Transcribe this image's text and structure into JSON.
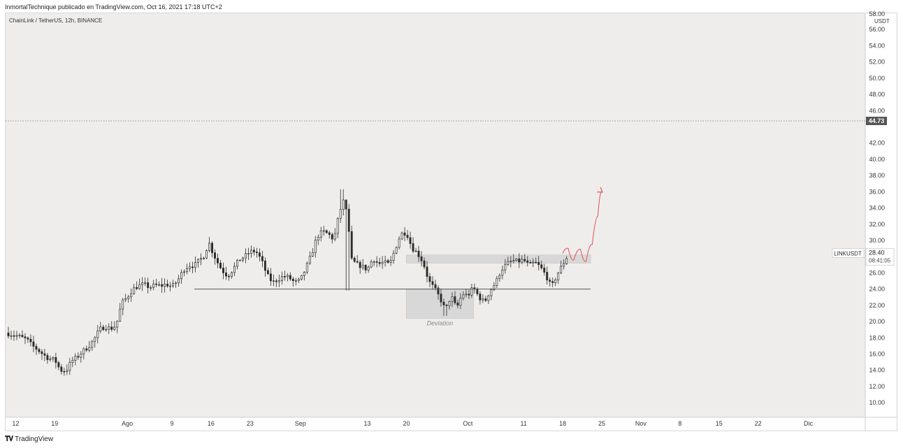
{
  "header": {
    "publisher_line": "InmortalTechnique publicado en TradingView.com, Oct 16, 2021 17:18 UTC+2"
  },
  "footer": {
    "brand": "TradingView",
    "logo_icon": "tradingview-logo-icon"
  },
  "colors": {
    "plot_bg": "#eeedec",
    "axis_bg": "#ffffff",
    "candle": "#2a2a2a",
    "projection": "#e06060",
    "zone": "#d9d8d8",
    "support_line": "#555555"
  },
  "chart_data": {
    "type": "candlestick",
    "title": "ChainLink / TetherUS, 12h, BINANCE",
    "price_scale_unit": "USDT",
    "ylim": [
      8.2,
      58.0
    ],
    "y_ticks": [
      "56.00",
      "54.00",
      "52.00",
      "50.00",
      "48.00",
      "46.00",
      "42.00",
      "40.00",
      "38.00",
      "36.00",
      "34.00",
      "32.00",
      "30.00",
      "28.00",
      "26.00",
      "24.00",
      "22.00",
      "20.00",
      "18.00",
      "16.00",
      "14.00",
      "12.00",
      "10.00"
    ],
    "y_ticks_values": [
      56,
      54,
      52,
      50,
      48,
      46,
      42,
      40,
      38,
      36,
      34,
      32,
      30,
      28,
      26,
      24,
      22,
      20,
      18,
      16,
      14,
      12,
      10
    ],
    "top_partial_tick": "58.00",
    "x_ticks": [
      {
        "label": "12",
        "day": 12
      },
      {
        "label": "19",
        "day": 19
      },
      {
        "label": "Ago",
        "day": 32
      },
      {
        "label": "9",
        "day": 40
      },
      {
        "label": "16",
        "day": 47
      },
      {
        "label": "23",
        "day": 54
      },
      {
        "label": "Sep",
        "day": 63
      },
      {
        "label": "13",
        "day": 75
      },
      {
        "label": "20",
        "day": 82
      },
      {
        "label": "Oct",
        "day": 93
      },
      {
        "label": "11",
        "day": 103
      },
      {
        "label": "18",
        "day": 110
      },
      {
        "label": "25",
        "day": 117
      },
      {
        "label": "Nov",
        "day": 124
      },
      {
        "label": "8",
        "day": 131
      },
      {
        "label": "15",
        "day": 138
      },
      {
        "label": "22",
        "day": 145
      },
      {
        "label": "Dic",
        "day": 154
      }
    ],
    "xlim_days": [
      10.2,
      164.2
    ],
    "horizontal_level": {
      "value": 44.73,
      "label": "44.73"
    },
    "last_price": {
      "symbol": "LINKUSDT",
      "value": "28.40",
      "countdown": "08:41:05",
      "y": 28.4
    },
    "support_line": {
      "value": 24.0,
      "from_day": 44,
      "to_day": 115
    },
    "resistance_zone": {
      "low": 27.2,
      "high": 28.2,
      "from_day": 82,
      "to_day": 115
    },
    "deviation_zone": {
      "low": 20.4,
      "high": 24.0,
      "from_day": 82,
      "to_day": 94,
      "label": "Deviation"
    },
    "projection_path": [
      {
        "day": 110.0,
        "price": 28.4
      },
      {
        "day": 111.0,
        "price": 29.0
      },
      {
        "day": 112.0,
        "price": 27.6
      },
      {
        "day": 113.2,
        "price": 28.9
      },
      {
        "day": 114.2,
        "price": 27.4
      },
      {
        "day": 115.3,
        "price": 29.5
      },
      {
        "day": 116.3,
        "price": 33.0
      },
      {
        "day": 117.0,
        "price": 36.0
      }
    ],
    "anchors": [
      [
        10.2,
        18.6
      ],
      [
        12,
        18.3
      ],
      [
        14,
        17.8
      ],
      [
        15,
        17.0
      ],
      [
        16,
        16.5
      ],
      [
        17,
        15.9
      ],
      [
        18,
        15.4
      ],
      [
        19,
        15.3
      ],
      [
        20,
        14.0
      ],
      [
        21,
        13.9
      ],
      [
        22,
        15.1
      ],
      [
        23,
        15.6
      ],
      [
        24,
        16.3
      ],
      [
        25,
        16.9
      ],
      [
        26,
        17.7
      ],
      [
        27,
        19.0
      ],
      [
        28,
        19.4
      ],
      [
        29,
        19.1
      ],
      [
        30,
        19.5
      ],
      [
        31,
        22.3
      ],
      [
        32,
        23.0
      ],
      [
        33,
        24.0
      ],
      [
        34,
        24.4
      ],
      [
        35,
        24.6
      ],
      [
        36,
        24.2
      ],
      [
        37,
        24.5
      ],
      [
        38,
        24.4
      ],
      [
        39,
        24.6
      ],
      [
        40,
        24.3
      ],
      [
        41,
        25.0
      ],
      [
        42,
        26.3
      ],
      [
        43,
        26.9
      ],
      [
        44,
        26.9
      ],
      [
        45,
        27.6
      ],
      [
        46,
        28.3
      ],
      [
        46.5,
        30.0
      ],
      [
        47,
        29.0
      ],
      [
        48,
        27.5
      ],
      [
        49,
        26.3
      ],
      [
        50,
        25.6
      ],
      [
        51,
        26.5
      ],
      [
        52,
        27.6
      ],
      [
        53,
        28.0
      ],
      [
        54,
        28.6
      ],
      [
        55,
        28.7
      ],
      [
        56,
        27.6
      ],
      [
        57,
        25.8
      ],
      [
        58,
        24.8
      ],
      [
        59,
        25.2
      ],
      [
        60,
        25.6
      ],
      [
        61,
        25.4
      ],
      [
        62,
        24.8
      ],
      [
        63,
        25.1
      ],
      [
        64,
        26.6
      ],
      [
        65,
        28.3
      ],
      [
        66,
        30.5
      ],
      [
        67,
        31.1
      ],
      [
        68,
        30.8
      ],
      [
        69,
        30.1
      ],
      [
        70,
        33.5
      ],
      [
        70.8,
        35.0
      ],
      [
        71.5,
        33.0
      ],
      [
        72,
        27.7
      ],
      [
        73,
        27.1
      ],
      [
        74,
        26.8
      ],
      [
        75,
        26.4
      ],
      [
        76,
        27.8
      ],
      [
        77,
        27.1
      ],
      [
        78,
        27.3
      ],
      [
        79,
        27.0
      ],
      [
        80,
        29.0
      ],
      [
        81,
        30.8
      ],
      [
        82,
        31.0
      ],
      [
        83,
        29.1
      ],
      [
        84,
        28.4
      ],
      [
        85,
        27.3
      ],
      [
        86,
        25.0
      ],
      [
        87,
        24.1
      ],
      [
        88,
        22.9
      ],
      [
        89,
        21.4
      ],
      [
        90,
        23.2
      ],
      [
        91,
        21.6
      ],
      [
        92,
        23.4
      ],
      [
        93,
        23.2
      ],
      [
        94,
        24.2
      ],
      [
        95,
        23.0
      ],
      [
        96,
        22.4
      ],
      [
        97,
        23.8
      ],
      [
        98,
        24.8
      ],
      [
        99,
        26.4
      ],
      [
        100,
        27.1
      ],
      [
        101,
        27.5
      ],
      [
        102,
        27.4
      ],
      [
        103,
        27.6
      ],
      [
        104,
        26.9
      ],
      [
        105,
        27.3
      ],
      [
        106,
        26.7
      ],
      [
        107,
        25.7
      ],
      [
        108,
        24.2
      ],
      [
        109,
        25.8
      ],
      [
        110,
        27.0
      ],
      [
        110.8,
        28.0
      ]
    ]
  }
}
